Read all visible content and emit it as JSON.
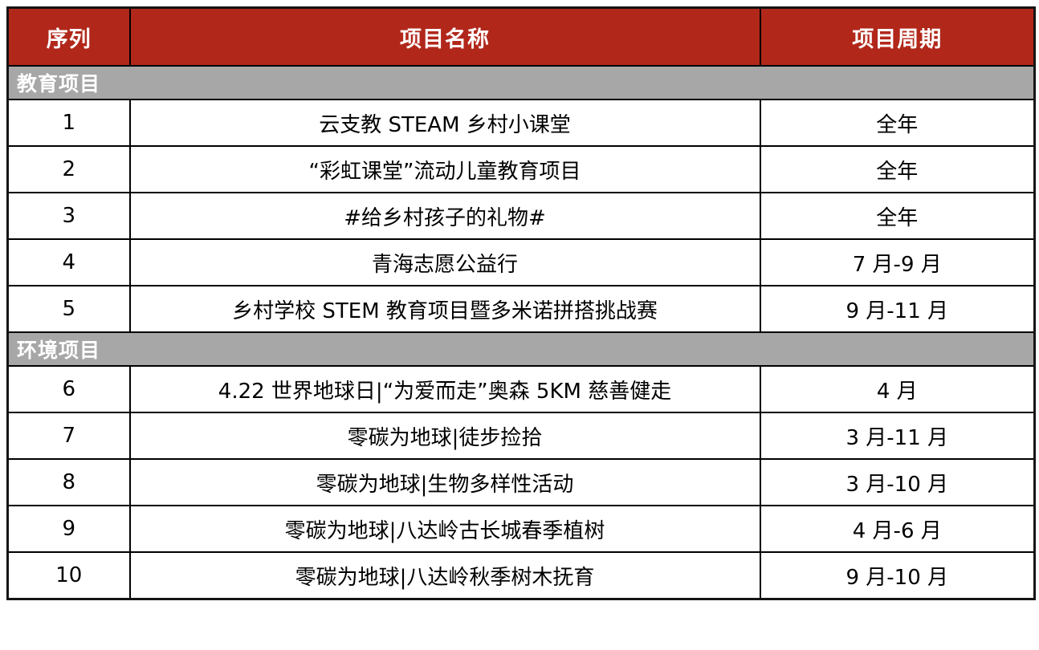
{
  "table": {
    "columns": [
      {
        "label": "序列"
      },
      {
        "label": "项目名称"
      },
      {
        "label": "项目周期"
      }
    ],
    "sections": [
      {
        "title": "教育项目",
        "rows": [
          {
            "no": "1",
            "name": "云支教 STEAM 乡村小课堂",
            "period": "全年"
          },
          {
            "no": "2",
            "name": "“彩虹课堂”流动儿童教育项目",
            "period": "全年"
          },
          {
            "no": "3",
            "name": "#给乡村孩子的礼物#",
            "period": "全年"
          },
          {
            "no": "4",
            "name": "青海志愿公益行",
            "period": "7 月-9 月"
          },
          {
            "no": "5",
            "name": "乡村学校 STEM 教育项目暨多米诺拼搭挑战赛",
            "period": "9 月-11 月"
          }
        ]
      },
      {
        "title": "环境项目",
        "rows": [
          {
            "no": "6",
            "name": "4.22 世界地球日|“为爱而走”奥森 5KM 慈善健走",
            "period": "4 月"
          },
          {
            "no": "7",
            "name": "零碳为地球|徒步捡拾",
            "period": "3 月-11 月"
          },
          {
            "no": "8",
            "name": "零碳为地球|生物多样性活动",
            "period": "3 月-10 月"
          },
          {
            "no": "9",
            "name": "零碳为地球|八达岭古长城春季植树",
            "period": "4 月-6 月"
          },
          {
            "no": "10",
            "name": "零碳为地球|八达岭秋季树木抚育",
            "period": "9 月-10 月"
          }
        ]
      }
    ],
    "colors": {
      "header_bg": "#B1281B",
      "header_text": "#FFFFFF",
      "section_bg": "#A7A7A7",
      "section_text": "#FFFFFF",
      "border": "#000000",
      "row_text": "#000000",
      "row_bg": "#FFFFFF"
    }
  }
}
